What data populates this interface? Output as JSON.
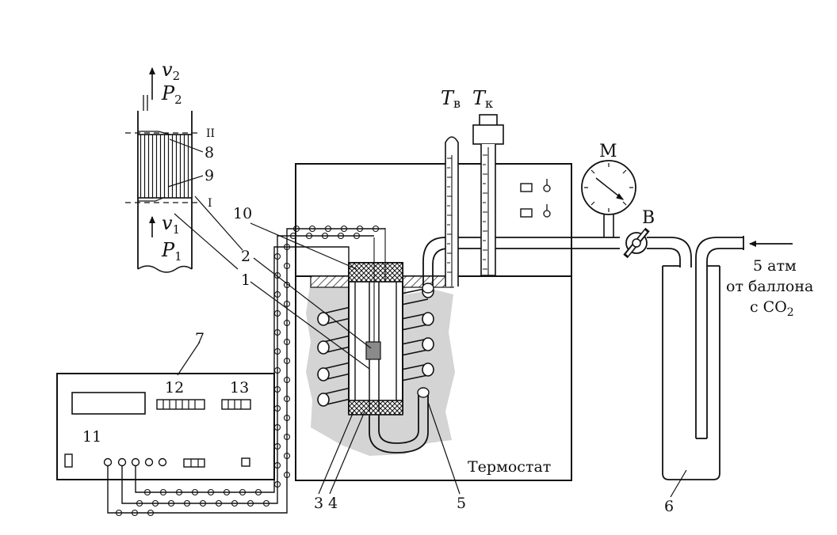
{
  "labels": {
    "n1": "1",
    "n2": "2",
    "n3": "3",
    "n4": "4",
    "n5": "5",
    "n6": "6",
    "n7": "7",
    "n8": "8",
    "n9": "9",
    "n10": "10",
    "n11": "11",
    "n12": "12",
    "n13": "13",
    "roman_top": "II",
    "roman_bottom": "I",
    "T_v": "T",
    "T_v_sub": "в",
    "T_k": "T",
    "T_k_sub": "к",
    "manometer": "M",
    "valve": "B",
    "v2": "v",
    "v2_sub": "2",
    "P2": "P",
    "P2_sub": "2",
    "v1": "v",
    "v1_sub": "1",
    "P1": "P",
    "P1_sub": "1",
    "thermostat": "Термостат",
    "source_line1": "5 атм",
    "source_line2": "от баллона",
    "source_line3_pre": "с CO",
    "source_line3_sub": "2"
  },
  "colors": {
    "ink": "#111111",
    "water": "#d4d4d4",
    "plug": "#9a9a9a",
    "heater": "#8a8a8a"
  }
}
